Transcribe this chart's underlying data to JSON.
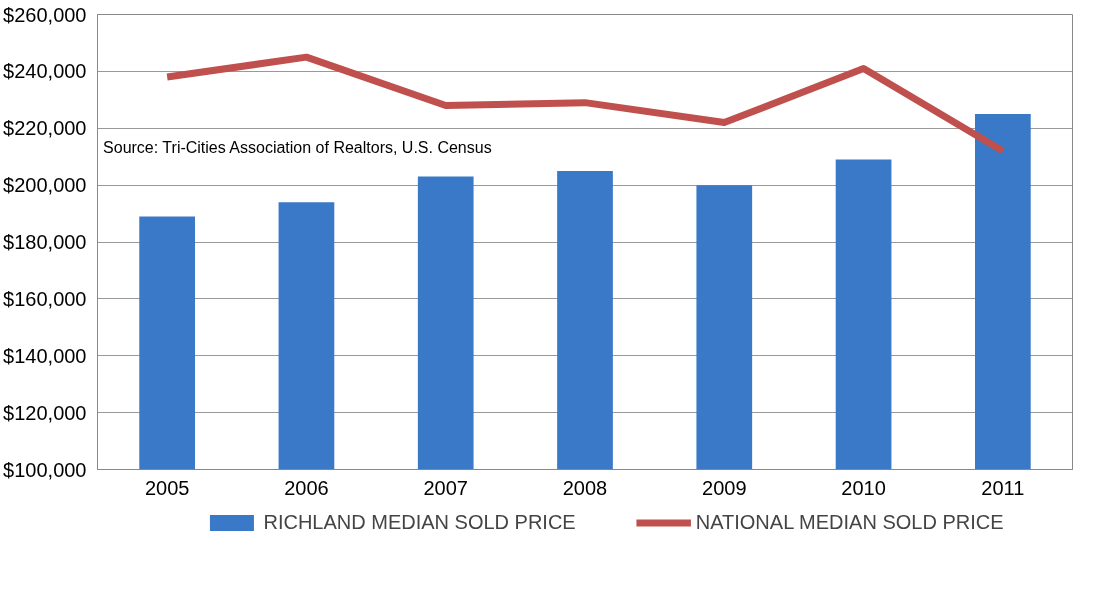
{
  "chart_data": {
    "type": "bar",
    "categories": [
      "2005",
      "2006",
      "2007",
      "2008",
      "2009",
      "2010",
      "2011"
    ],
    "series": [
      {
        "name": "RICHLAND MEDIAN SOLD PRICE",
        "color": "#3a78c8",
        "values": [
          189000,
          194000,
          203000,
          205000,
          200000,
          209000,
          225000
        ]
      },
      {
        "name": "NATIONAL MEDIAN SOLD PRICE",
        "type": "line",
        "color": "#c0504d",
        "values": [
          238000,
          245000,
          228000,
          229000,
          222000,
          241000,
          212000
        ]
      }
    ],
    "ylim": [
      100000,
      260000
    ],
    "yticks": [
      {
        "value": 100000,
        "label": "$100,000"
      },
      {
        "value": 120000,
        "label": "$120,000"
      },
      {
        "value": 140000,
        "label": "$140,000"
      },
      {
        "value": 160000,
        "label": "$160,000"
      },
      {
        "value": 180000,
        "label": "$180,000"
      },
      {
        "value": 200000,
        "label": "$200,000"
      },
      {
        "value": 220000,
        "label": "$220,000"
      },
      {
        "value": 240000,
        "label": "$240,000"
      },
      {
        "value": 260000,
        "label": "$260,000"
      }
    ],
    "grid": "y",
    "legend": "bottom",
    "marker": "none",
    "annotations": [
      "Source: Tri-Cities Association of Realtors, U.S. Census"
    ]
  }
}
